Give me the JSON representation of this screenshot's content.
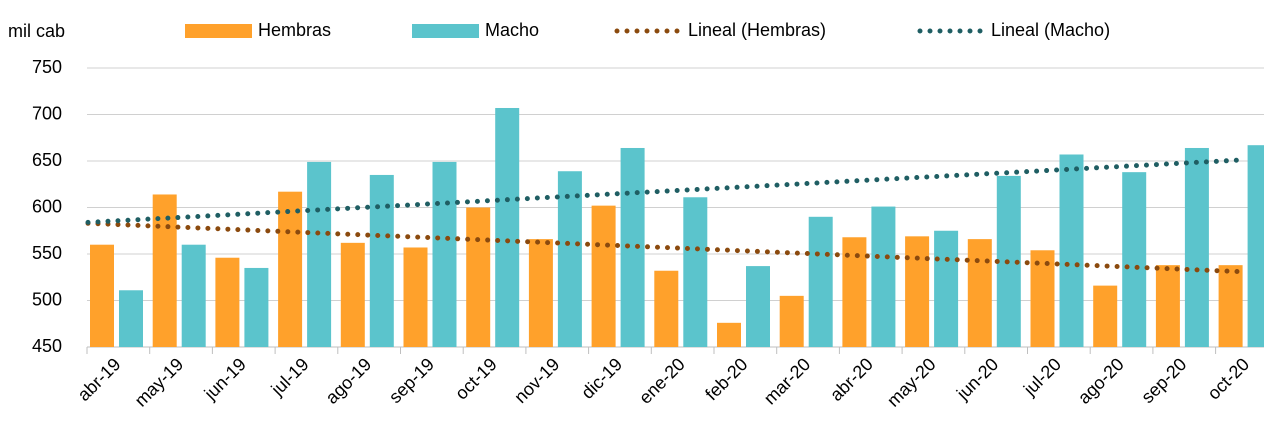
{
  "chart_data": {
    "type": "bar",
    "y_label": "mil cab",
    "categories": [
      "abr-19",
      "may-19",
      "jun-19",
      "jul-19",
      "ago-19",
      "sep-19",
      "oct-19",
      "nov-19",
      "dic-19",
      "ene-20",
      "feb-20",
      "mar-20",
      "abr-20",
      "may-20",
      "jun-20",
      "jul-20",
      "ago-20",
      "sep-20",
      "oct-20"
    ],
    "series": [
      {
        "name": "Hembras",
        "kind": "bar",
        "color": "#FFA12B",
        "values": [
          560,
          614,
          546,
          617,
          562,
          557,
          600,
          566,
          602,
          532,
          476,
          505,
          568,
          569,
          566,
          554,
          516,
          538,
          538
        ]
      },
      {
        "name": "Macho",
        "kind": "bar",
        "color": "#5BC4CC",
        "values": [
          511,
          560,
          535,
          649,
          635,
          649,
          707,
          639,
          664,
          611,
          537,
          590,
          601,
          575,
          634,
          657,
          638,
          664,
          667
        ]
      },
      {
        "name": "Lineal (Hembras)",
        "kind": "trend",
        "color": "#8B4A0E",
        "values": [
          583,
          580.1,
          577.2,
          574.3,
          571.4,
          568.6,
          565.7,
          562.8,
          559.9,
          557,
          554.1,
          551.2,
          548.3,
          545.4,
          542.6,
          539.7,
          536.8,
          533.9,
          531
        ]
      },
      {
        "name": "Lineal (Macho)",
        "kind": "trend",
        "color": "#1F5E63",
        "values": [
          584,
          587.7,
          591.4,
          595.2,
          598.9,
          602.6,
          606.3,
          610.1,
          613.8,
          617.5,
          621.2,
          624.9,
          628.7,
          632.4,
          636.1,
          639.8,
          643.6,
          647.3,
          651
        ]
      }
    ],
    "ylim": [
      450,
      750
    ],
    "yticks": [
      450,
      500,
      550,
      600,
      650,
      700,
      750
    ],
    "grid": true,
    "legend": "top"
  }
}
